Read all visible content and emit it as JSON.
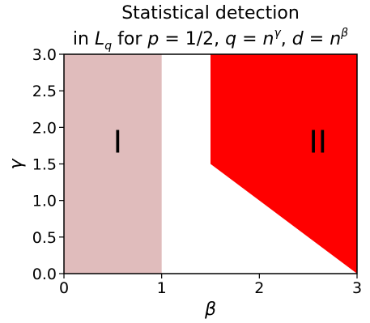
{
  "chart_data": {
    "type": "area",
    "title_line1": "Statistical detection",
    "title_line2": {
      "prefix": "in ",
      "L": "L",
      "L_sub": "q",
      "mid1": " for ",
      "p": "p",
      "eq1": " = 1/2, ",
      "q": "q",
      "eq2": " = ",
      "n1": "n",
      "gamma_sup": "γ",
      "sep": ", ",
      "d": "d",
      "eq3": " = ",
      "n2": "n",
      "beta_sup": "β"
    },
    "xlabel": "β",
    "ylabel": "γ",
    "xlim": [
      0,
      3
    ],
    "ylim": [
      0,
      3
    ],
    "xticks": [
      {
        "value": 0,
        "label": "0"
      },
      {
        "value": 1,
        "label": "1"
      },
      {
        "value": 2,
        "label": "2"
      },
      {
        "value": 3,
        "label": "3"
      }
    ],
    "yticks": [
      {
        "value": 0.0,
        "label": "0.0"
      },
      {
        "value": 0.5,
        "label": "0.5"
      },
      {
        "value": 1.0,
        "label": "1.0"
      },
      {
        "value": 1.5,
        "label": "1.5"
      },
      {
        "value": 2.0,
        "label": "2.0"
      },
      {
        "value": 2.5,
        "label": "2.5"
      },
      {
        "value": 3.0,
        "label": "3.0"
      }
    ],
    "regions": [
      {
        "label": "I",
        "color": "#e0bcbc",
        "polygon": [
          [
            0,
            0
          ],
          [
            1,
            0
          ],
          [
            1,
            3
          ],
          [
            0,
            3
          ]
        ],
        "label_at": [
          0.55,
          1.8
        ]
      },
      {
        "label": "II",
        "color": "#ff0000",
        "polygon": [
          [
            1.5,
            1.5
          ],
          [
            1.5,
            3
          ],
          [
            3,
            3
          ],
          [
            3,
            0
          ]
        ],
        "label_at": [
          2.6,
          1.8
        ]
      }
    ],
    "grid": false
  }
}
